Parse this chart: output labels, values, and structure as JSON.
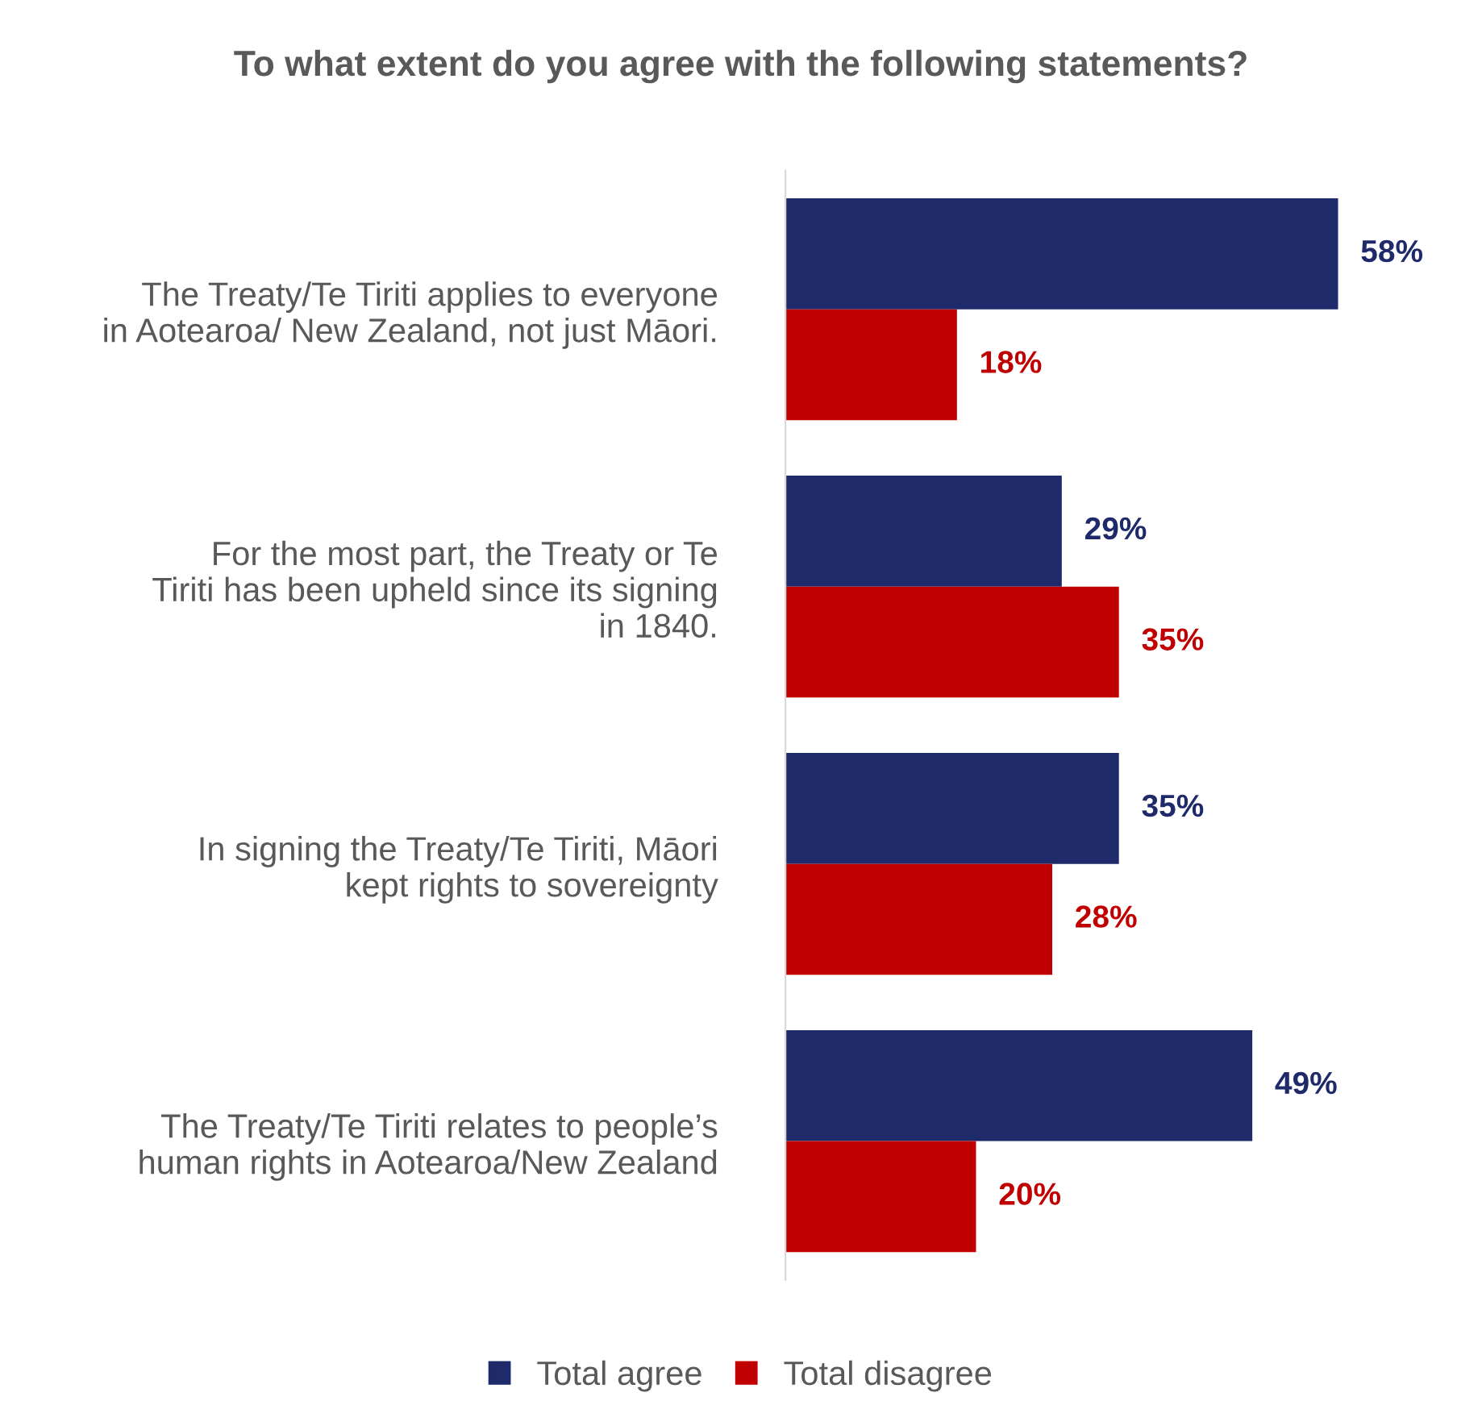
{
  "chart_data": {
    "type": "bar",
    "orientation": "horizontal",
    "title": "To what extent do you agree with the following statements?",
    "categories": [
      "The Treaty/Te Tiriti applies to everyone in Aotearoa/ New Zealand, not just Māori.",
      "For the most part, the Treaty or Te Tiriti has been upheld since its signing in 1840.",
      "In signing the Treaty/Te Tiriti, Māori kept rights to sovereignty",
      "The Treaty/Te Tiriti relates to people’s human rights in Aotearoa/New Zealand"
    ],
    "series": [
      {
        "name": "Total agree",
        "color": "#1f2a6b",
        "values": [
          58,
          29,
          35,
          49
        ],
        "value_labels": [
          "58%",
          "29%",
          "35%",
          "49%"
        ]
      },
      {
        "name": "Total disagree",
        "color": "#c00000",
        "values": [
          18,
          35,
          28,
          20
        ],
        "value_labels": [
          "18%",
          "35%",
          "28%",
          "20%"
        ]
      }
    ],
    "legend": "bottom",
    "tick_labels": "y",
    "grid": false
  }
}
